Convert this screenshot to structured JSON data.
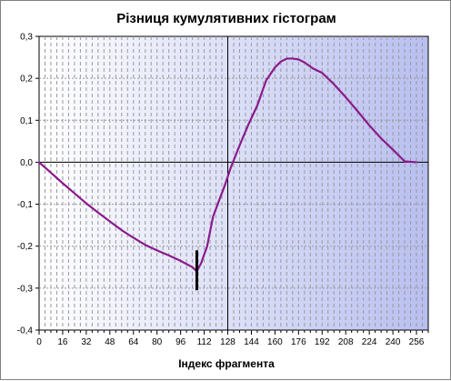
{
  "chart_data": {
    "type": "line",
    "title": "Різниця кумулятивних гістограм",
    "xlabel": "Індекс фрагмента",
    "ylabel": "",
    "xlim": [
      0,
      264
    ],
    "ylim": [
      -0.4,
      0.3
    ],
    "x_ticks": [
      0,
      16,
      32,
      48,
      64,
      80,
      96,
      112,
      128,
      144,
      160,
      176,
      192,
      208,
      224,
      240,
      256
    ],
    "x_tick_labels": [
      "0",
      "16",
      "32",
      "48",
      "64",
      "80",
      "96",
      "112",
      "128",
      "144",
      "160",
      "176",
      "192",
      "208",
      "224",
      "240",
      "256"
    ],
    "y_ticks": [
      -0.4,
      -0.3,
      -0.2,
      -0.1,
      0.0,
      0.1,
      0.2,
      0.3
    ],
    "y_tick_labels": [
      "-0,4",
      "-0,3",
      "-0,2",
      "-0,1",
      "0,0",
      "0,1",
      "0,2",
      "0,3"
    ],
    "grid": true,
    "legend": "none",
    "series": [
      {
        "color": "#8b1a8b",
        "x": [
          0,
          8,
          16,
          24,
          32,
          40,
          48,
          56,
          64,
          72,
          80,
          88,
          96,
          104,
          107,
          110,
          114,
          118,
          122,
          126,
          130,
          136,
          142,
          148,
          154,
          160,
          164,
          168,
          172,
          176,
          180,
          186,
          192,
          200,
          208,
          216,
          224,
          232,
          240,
          248,
          256
        ],
        "y": [
          0.0,
          -0.025,
          -0.05,
          -0.074,
          -0.098,
          -0.12,
          -0.141,
          -0.162,
          -0.18,
          -0.197,
          -0.21,
          -0.222,
          -0.235,
          -0.25,
          -0.26,
          -0.24,
          -0.2,
          -0.13,
          -0.092,
          -0.055,
          -0.013,
          0.04,
          0.09,
          0.135,
          0.195,
          0.226,
          0.24,
          0.247,
          0.247,
          0.245,
          0.238,
          0.223,
          0.213,
          0.186,
          0.155,
          0.122,
          0.088,
          0.057,
          0.03,
          0.002,
          0.0
        ]
      }
    ],
    "markers": {
      "vertical_segment": {
        "x": 107,
        "y_top": -0.21,
        "y_bottom": -0.305,
        "color": "#000000"
      },
      "vertical_line": {
        "x": 128,
        "color": "#000000"
      },
      "horizontal_line": {
        "y": 0.0,
        "color": "#000000"
      }
    },
    "colors": {
      "plot_bg_left": "#ffffff",
      "plot_bg_right": "#b8bff0",
      "grid": "#9a9a9a",
      "axis": "#000000"
    }
  }
}
